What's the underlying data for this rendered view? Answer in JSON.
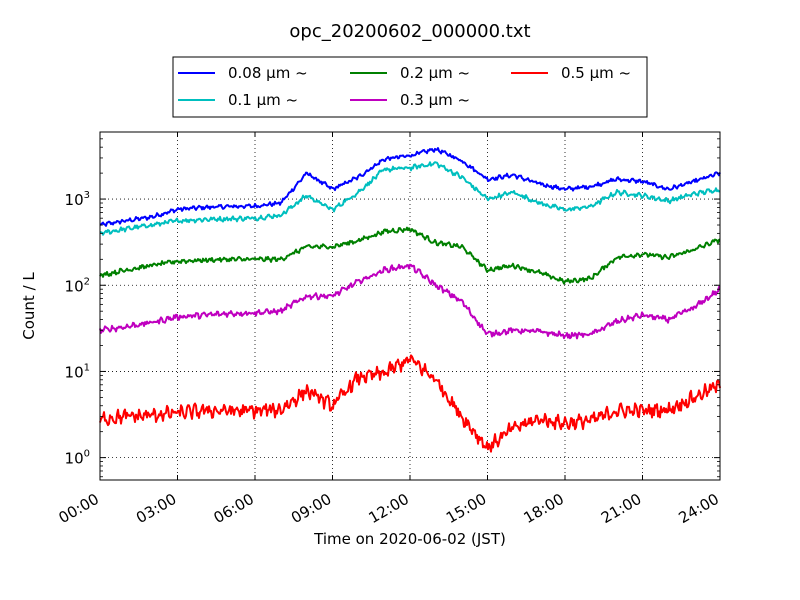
{
  "chart_data": {
    "type": "line",
    "title": "opc_20200602_000000.txt",
    "xlabel": "Time on 2020-06-02 (JST)",
    "ylabel": "Count / L",
    "xlim": [
      "00:00",
      "24:00"
    ],
    "ylim": [
      0.55,
      6000
    ],
    "yscale": "log",
    "grid": true,
    "legend_placement": "top-center",
    "x_ticks": [
      "00:00",
      "03:00",
      "06:00",
      "09:00",
      "12:00",
      "15:00",
      "18:00",
      "21:00",
      "24:00"
    ],
    "y_ticks": [
      {
        "value": 1,
        "base": "10",
        "exp": "0"
      },
      {
        "value": 10,
        "base": "10",
        "exp": "1"
      },
      {
        "value": 100,
        "base": "10",
        "exp": "2"
      },
      {
        "value": 1000,
        "base": "10",
        "exp": "3"
      }
    ],
    "x": [
      "00:00",
      "01:00",
      "02:00",
      "03:00",
      "04:00",
      "05:00",
      "06:00",
      "07:00",
      "08:00",
      "09:00",
      "10:00",
      "11:00",
      "12:00",
      "13:00",
      "14:00",
      "15:00",
      "16:00",
      "17:00",
      "18:00",
      "19:00",
      "20:00",
      "21:00",
      "22:00",
      "23:00",
      "24:00"
    ],
    "series": [
      {
        "name": "0.08 μm ~",
        "color": "#0000ff",
        "values": [
          500,
          560,
          620,
          760,
          800,
          820,
          830,
          900,
          2000,
          1300,
          1800,
          2900,
          3200,
          3800,
          2800,
          1700,
          1900,
          1500,
          1300,
          1400,
          1700,
          1600,
          1300,
          1600,
          2000
        ]
      },
      {
        "name": "0.1 μm ~",
        "color": "#00bfbf",
        "values": [
          400,
          450,
          500,
          560,
          580,
          590,
          600,
          650,
          1100,
          750,
          1200,
          2200,
          2300,
          2600,
          1800,
          1000,
          1200,
          900,
          750,
          820,
          1200,
          1100,
          950,
          1150,
          1300
        ]
      },
      {
        "name": "0.2 μm ~",
        "color": "#008000",
        "values": [
          130,
          150,
          170,
          190,
          195,
          200,
          200,
          200,
          280,
          280,
          330,
          420,
          450,
          310,
          280,
          150,
          170,
          140,
          110,
          120,
          210,
          230,
          210,
          260,
          340
        ]
      },
      {
        "name": "0.3 μm ~",
        "color": "#bf00bf",
        "values": [
          30,
          33,
          37,
          43,
          45,
          47,
          48,
          50,
          75,
          75,
          110,
          150,
          170,
          100,
          65,
          27,
          30,
          29,
          26,
          27,
          38,
          45,
          40,
          55,
          90
        ]
      },
      {
        "name": "0.5 μm ~",
        "color": "#ff0000",
        "values": [
          2.8,
          3.0,
          3.1,
          3.3,
          3.5,
          3.5,
          3.5,
          3.6,
          6.0,
          4.0,
          8.5,
          9.5,
          14.0,
          8.0,
          3.0,
          1.3,
          2.2,
          2.8,
          2.5,
          2.7,
          3.5,
          3.5,
          3.6,
          5.0,
          7.0
        ]
      }
    ]
  }
}
